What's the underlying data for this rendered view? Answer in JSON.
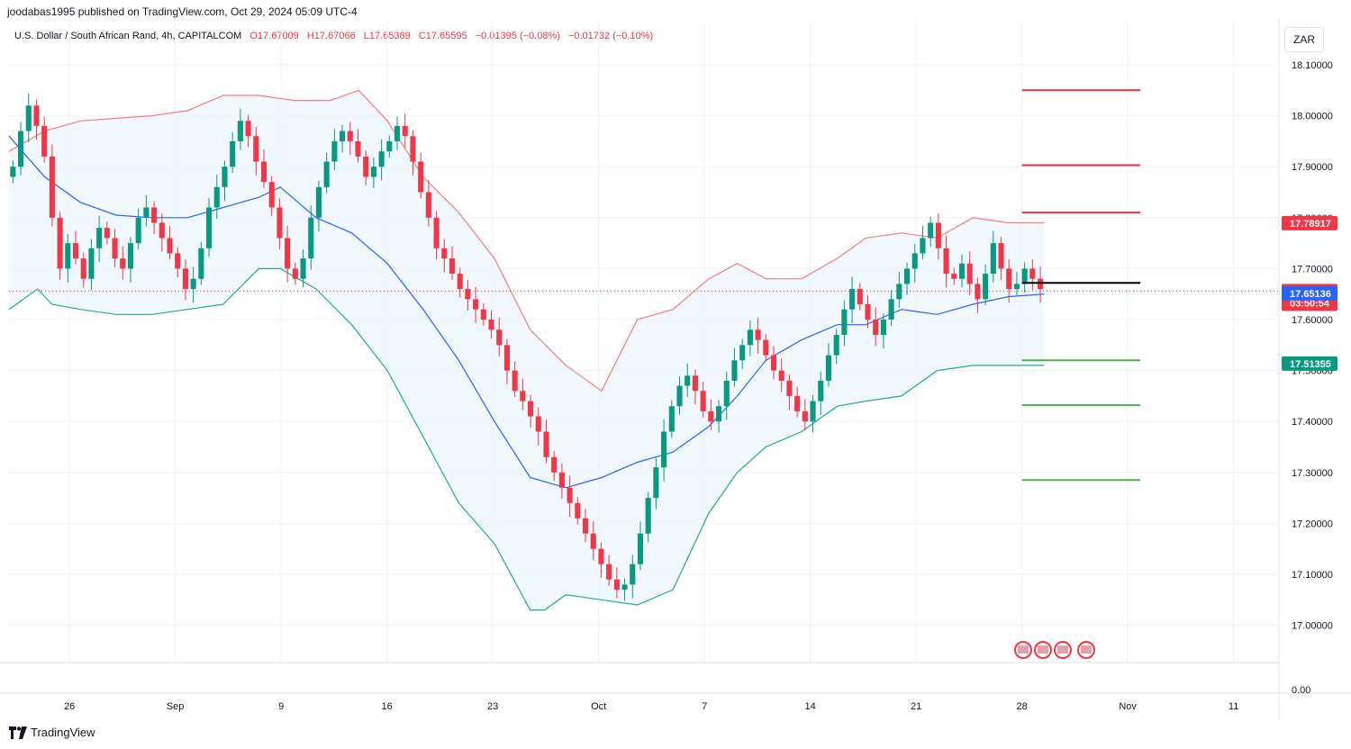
{
  "header": {
    "publisher": "joodabas1995 published on TradingView.com, Oct 29, 2024 05:09 UTC-4",
    "symbol": "U.S. Dollar / South African Rand, 4h, CAPITALCOM",
    "open": "O17.67009",
    "high": "H17.67066",
    "low": "L17.65389",
    "close": "C17.65595",
    "change": "−0.01395 (−0.08%)",
    "change2": "−0.01732 (−0.10%)"
  },
  "currency_button": "ZAR",
  "footer": {
    "brand": "TradingView"
  },
  "colors": {
    "up": "#089981",
    "down": "#f23645",
    "band_upper": "#f77c80",
    "band_lower": "#22ab94",
    "band_basis": "#2962ff",
    "band_fill": "#eaf3fc",
    "resistance": "#e0343f",
    "support": "#4caf50",
    "pivot": "#000000"
  },
  "chart_data": {
    "type": "candlestick",
    "instrument": "USDZAR",
    "interval": "4h",
    "y_tick_labels": [
      "18.10000",
      "18.00000",
      "17.90000",
      "17.80000",
      "17.70000",
      "17.60000",
      "17.50000",
      "17.40000",
      "17.30000",
      "17.20000",
      "17.10000",
      "17.00000",
      "0.00"
    ],
    "y_ticks": [
      18.1,
      18.0,
      17.9,
      17.8,
      17.7,
      17.6,
      17.5,
      17.4,
      17.3,
      17.2,
      17.1,
      17.0
    ],
    "ylim": [
      16.93,
      18.16
    ],
    "x_tick_labels": [
      "26",
      "Sep",
      "9",
      "16",
      "23",
      "Oct",
      "7",
      "14",
      "21",
      "28",
      "Nov",
      "11"
    ],
    "x_ticks": [
      "2024-08-26",
      "2024-09-02",
      "2024-09-09",
      "2024-09-16",
      "2024-09-23",
      "2024-09-30",
      "2024-10-07",
      "2024-10-14",
      "2024-10-21",
      "2024-10-28",
      "2024-11-04",
      "2024-11-11"
    ],
    "x_start": "2024-08-22",
    "x_end": "2024-11-14",
    "last_bar": "2024-10-29",
    "price_labels": [
      {
        "value": 17.78917,
        "text": "17.78917",
        "color": "#f23645"
      },
      {
        "value": 17.65595,
        "text": "17.65595",
        "text2": "03:50:54",
        "color": "#f23645"
      },
      {
        "value": 17.65136,
        "text": "17.65136",
        "color": "#2962ff"
      },
      {
        "value": 17.51355,
        "text": "17.51355",
        "color": "#089981"
      }
    ],
    "levels": [
      {
        "value": 18.05,
        "kind": "resistance"
      },
      {
        "value": 17.903,
        "kind": "resistance"
      },
      {
        "value": 17.81,
        "kind": "resistance"
      },
      {
        "value": 17.672,
        "kind": "pivot"
      },
      {
        "value": 17.52,
        "kind": "support"
      },
      {
        "value": 17.432,
        "kind": "support"
      },
      {
        "value": 17.285,
        "kind": "support"
      }
    ],
    "levels_x_range": [
      "2024-10-28",
      "2024-11-04"
    ],
    "bollinger": {
      "upper": [
        [
          0,
          17.93
        ],
        [
          10,
          17.97
        ],
        [
          20,
          17.99
        ],
        [
          30,
          17.995
        ],
        [
          40,
          18.0
        ],
        [
          50,
          18.01
        ],
        [
          60,
          18.04
        ],
        [
          70,
          18.04
        ],
        [
          80,
          18.03
        ],
        [
          90,
          18.03
        ],
        [
          98,
          18.05
        ],
        [
          106,
          17.99
        ],
        [
          116,
          17.88
        ],
        [
          126,
          17.81
        ],
        [
          136,
          17.72
        ],
        [
          146,
          17.58
        ],
        [
          156,
          17.51
        ],
        [
          166,
          17.46
        ],
        [
          176,
          17.6
        ],
        [
          186,
          17.62
        ],
        [
          196,
          17.68
        ],
        [
          204,
          17.71
        ],
        [
          212,
          17.68
        ],
        [
          222,
          17.68
        ],
        [
          232,
          17.72
        ],
        [
          240,
          17.76
        ],
        [
          250,
          17.77
        ],
        [
          260,
          17.76
        ],
        [
          270,
          17.8
        ],
        [
          280,
          17.79
        ],
        [
          290,
          17.79
        ]
      ],
      "basis": [
        [
          0,
          17.96
        ],
        [
          10,
          17.88
        ],
        [
          20,
          17.83
        ],
        [
          30,
          17.805
        ],
        [
          40,
          17.8
        ],
        [
          50,
          17.8
        ],
        [
          60,
          17.82
        ],
        [
          70,
          17.84
        ],
        [
          76,
          17.86
        ],
        [
          86,
          17.8
        ],
        [
          96,
          17.77
        ],
        [
          106,
          17.71
        ],
        [
          116,
          17.62
        ],
        [
          126,
          17.52
        ],
        [
          136,
          17.4
        ],
        [
          146,
          17.29
        ],
        [
          156,
          17.27
        ],
        [
          166,
          17.29
        ],
        [
          176,
          17.32
        ],
        [
          186,
          17.34
        ],
        [
          196,
          17.39
        ],
        [
          204,
          17.45
        ],
        [
          212,
          17.52
        ],
        [
          222,
          17.56
        ],
        [
          232,
          17.59
        ],
        [
          240,
          17.59
        ],
        [
          250,
          17.62
        ],
        [
          260,
          17.61
        ],
        [
          270,
          17.63
        ],
        [
          280,
          17.645
        ],
        [
          290,
          17.65
        ]
      ],
      "lower": [
        [
          0,
          17.62
        ],
        [
          8,
          17.66
        ],
        [
          12,
          17.63
        ],
        [
          20,
          17.62
        ],
        [
          30,
          17.61
        ],
        [
          40,
          17.61
        ],
        [
          50,
          17.62
        ],
        [
          60,
          17.63
        ],
        [
          70,
          17.7
        ],
        [
          76,
          17.7
        ],
        [
          86,
          17.66
        ],
        [
          96,
          17.59
        ],
        [
          106,
          17.5
        ],
        [
          116,
          17.37
        ],
        [
          126,
          17.24
        ],
        [
          136,
          17.16
        ],
        [
          146,
          17.03
        ],
        [
          150,
          17.03
        ],
        [
          156,
          17.06
        ],
        [
          166,
          17.05
        ],
        [
          176,
          17.04
        ],
        [
          186,
          17.07
        ],
        [
          196,
          17.22
        ],
        [
          204,
          17.3
        ],
        [
          212,
          17.35
        ],
        [
          222,
          17.38
        ],
        [
          232,
          17.43
        ],
        [
          240,
          17.44
        ],
        [
          250,
          17.45
        ],
        [
          260,
          17.5
        ],
        [
          270,
          17.51
        ],
        [
          280,
          17.51
        ],
        [
          290,
          17.51
        ]
      ]
    },
    "candles_close": [
      17.9,
      17.97,
      18.02,
      17.98,
      17.92,
      17.8,
      17.7,
      17.75,
      17.72,
      17.68,
      17.74,
      17.78,
      17.76,
      17.72,
      17.7,
      17.75,
      17.8,
      17.82,
      17.79,
      17.76,
      17.73,
      17.7,
      17.66,
      17.68,
      17.74,
      17.82,
      17.86,
      17.9,
      17.95,
      17.99,
      17.96,
      17.91,
      17.87,
      17.82,
      17.76,
      17.7,
      17.68,
      17.72,
      17.8,
      17.86,
      17.91,
      17.95,
      17.97,
      17.95,
      17.92,
      17.88,
      17.9,
      17.93,
      17.95,
      17.98,
      17.96,
      17.91,
      17.85,
      17.8,
      17.74,
      17.72,
      17.69,
      17.66,
      17.64,
      17.62,
      17.6,
      17.58,
      17.55,
      17.5,
      17.46,
      17.44,
      17.41,
      17.38,
      17.33,
      17.3,
      17.27,
      17.24,
      17.21,
      17.18,
      17.15,
      17.12,
      17.09,
      17.07,
      17.08,
      17.12,
      17.18,
      17.25,
      17.31,
      17.38,
      17.43,
      17.47,
      17.49,
      17.46,
      17.42,
      17.4,
      17.43,
      17.48,
      17.52,
      17.55,
      17.58,
      17.56,
      17.53,
      17.5,
      17.48,
      17.45,
      17.42,
      17.4,
      17.44,
      17.48,
      17.53,
      17.57,
      17.62,
      17.66,
      17.63,
      17.6,
      17.57,
      17.6,
      17.64,
      17.67,
      17.7,
      17.73,
      17.76,
      17.79,
      17.74,
      17.69,
      17.68,
      17.71,
      17.67,
      17.64,
      17.69,
      17.75,
      17.7,
      17.66,
      17.67,
      17.7,
      17.68,
      17.66
    ],
    "note_candles": "closes in chronological order; open of each bar = previous close"
  }
}
